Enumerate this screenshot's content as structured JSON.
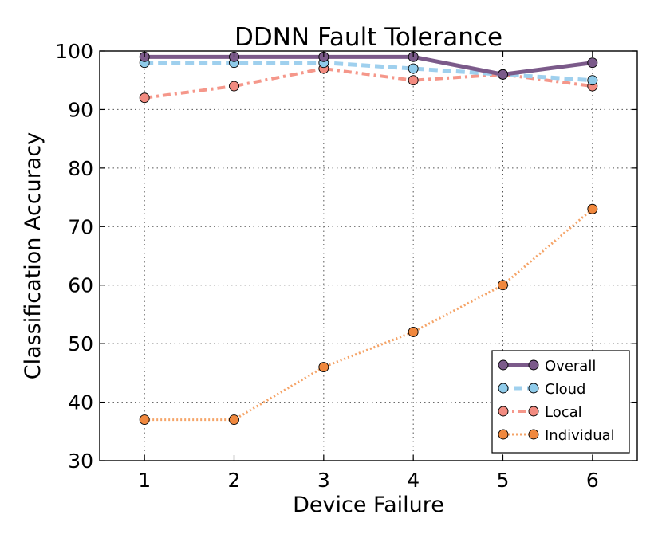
{
  "chart_data": {
    "type": "line",
    "title": "DDNN Fault Tolerance",
    "xlabel": "Device Failure",
    "ylabel": "Classification Accuracy",
    "x": [
      1,
      2,
      3,
      4,
      5,
      6
    ],
    "xlim": [
      0.5,
      6.5
    ],
    "ylim": [
      30,
      100
    ],
    "yticks": [
      30,
      40,
      50,
      60,
      70,
      80,
      90,
      100
    ],
    "grid": true,
    "legend_position": "lower-right",
    "series": [
      {
        "name": "Overall",
        "values": [
          99,
          99,
          99,
          99,
          96,
          98
        ],
        "color": "#7b5a8a",
        "marker": "#7b5a8a",
        "style": "solid"
      },
      {
        "name": "Cloud",
        "values": [
          98,
          98,
          98,
          97,
          96,
          95
        ],
        "color": "#9fd0ee",
        "marker": "#8fcbea",
        "style": "dashed"
      },
      {
        "name": "Local",
        "values": [
          92,
          94,
          97,
          95,
          96,
          94
        ],
        "color": "#f5978a",
        "marker": "#f28b80",
        "style": "dashdot"
      },
      {
        "name": "Individual",
        "values": [
          37,
          37,
          46,
          52,
          60,
          73
        ],
        "color": "#f5a468",
        "marker": "#f0883e",
        "style": "dotted"
      }
    ]
  }
}
